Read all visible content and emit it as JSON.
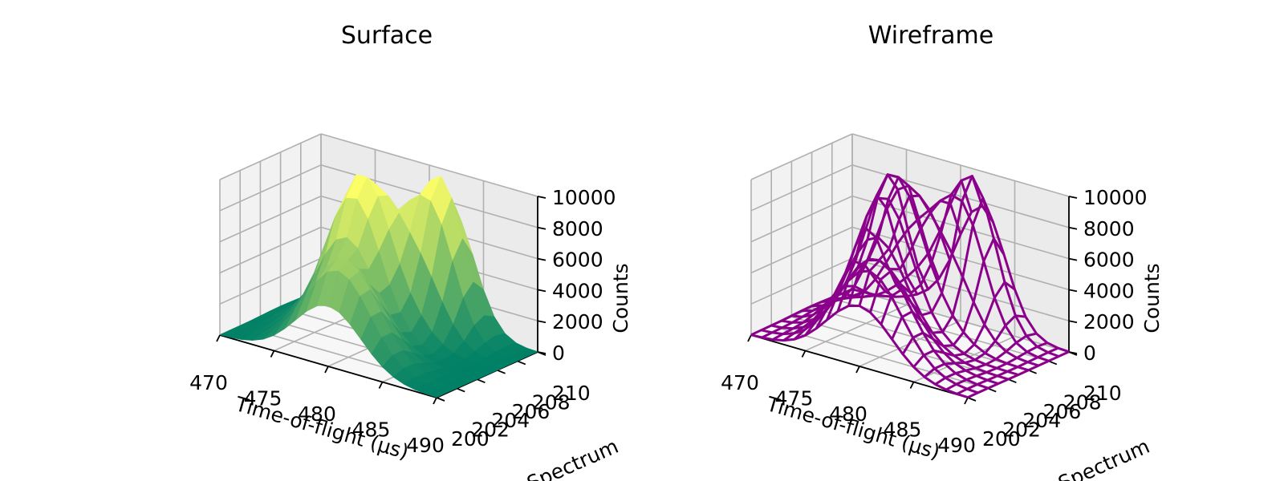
{
  "chart_data": [
    {
      "type": "surface3d",
      "title": "Surface",
      "xlabel": "Time-of-flight ($\\mu$s)",
      "ylabel": "Spectrum",
      "zlabel": "Counts",
      "xlim": [
        470,
        490
      ],
      "ylim": [
        200,
        210
      ],
      "zlim": [
        0,
        10000
      ],
      "xticks": [
        "470",
        "475",
        "480",
        "485",
        "490"
      ],
      "yticks": [
        "200",
        "202",
        "204",
        "206",
        "208",
        "210"
      ],
      "zticks": [
        "0",
        "2000",
        "4000",
        "6000",
        "8000",
        "10000"
      ],
      "colormap": "summer",
      "colors": {
        "low": "#008066",
        "high": "#ffff66"
      },
      "peaks": [
        {
          "x": 477.5,
          "y": 206,
          "height": 10000,
          "sigma_x": 2.5,
          "sigma_y": 1.8
        },
        {
          "x": 482,
          "y": 209,
          "height": 9500,
          "sigma_x": 2.2,
          "sigma_y": 1.5
        },
        {
          "x": 480,
          "y": 201.5,
          "height": 6000,
          "sigma_x": 3.0,
          "sigma_y": 1.6
        }
      ],
      "grid": true
    },
    {
      "type": "wireframe3d",
      "title": "Wireframe",
      "xlabel": "Time-of-flight ($\\mu$s)",
      "ylabel": "Spectrum",
      "zlabel": "Counts",
      "xlim": [
        470,
        490
      ],
      "ylim": [
        200,
        210
      ],
      "zlim": [
        0,
        10000
      ],
      "xticks": [
        "470",
        "475",
        "480",
        "485",
        "490"
      ],
      "yticks": [
        "200",
        "202",
        "204",
        "206",
        "208",
        "210"
      ],
      "zticks": [
        "0",
        "2000",
        "4000",
        "6000",
        "8000",
        "10000"
      ],
      "colors": {
        "line": "#8b008b"
      },
      "peaks": [
        {
          "x": 477.5,
          "y": 206,
          "height": 10000,
          "sigma_x": 2.5,
          "sigma_y": 1.8
        },
        {
          "x": 482,
          "y": 209,
          "height": 9500,
          "sigma_x": 2.2,
          "sigma_y": 1.5
        },
        {
          "x": 480,
          "y": 201.5,
          "height": 6000,
          "sigma_x": 3.0,
          "sigma_y": 1.6
        }
      ],
      "grid": true
    }
  ]
}
